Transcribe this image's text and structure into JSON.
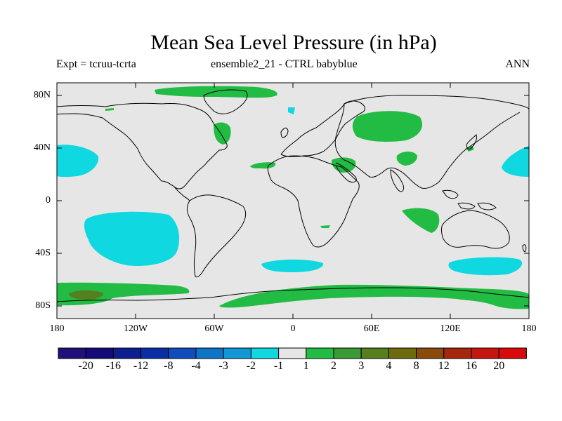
{
  "title": "Mean Sea Level Pressure (in hPa)",
  "subtitle_left": "Expt = tcruu-tcrta",
  "subtitle_center": "ensemble2_21 - CTRL babyblue",
  "subtitle_right": "ANN",
  "lat_labels": [
    "80N",
    "40N",
    "0",
    "40S",
    "80S"
  ],
  "lon_labels": [
    "180",
    "120W",
    "60W",
    "0",
    "60E",
    "120E",
    "180"
  ],
  "colorbar": {
    "labels": [
      "-20",
      "-16",
      "-12",
      "-8",
      "-4",
      "-3",
      "-2",
      "-1",
      "1",
      "2",
      "3",
      "4",
      "8",
      "12",
      "16",
      "20"
    ],
    "colors": [
      "#20107a",
      "#130c78",
      "#0e1e8f",
      "#0a2ea4",
      "#104dba",
      "#0d75c5",
      "#1197d6",
      "#10d8e0",
      "#e6e6e6",
      "#22bb44",
      "#3a9a33",
      "#56801e",
      "#6e6a0e",
      "#8a4a0c",
      "#a6280c",
      "#c6150e",
      "#d80a0a"
    ]
  },
  "colors": {
    "background": "#e6e6e6",
    "negative": "#10d8e0",
    "positive": "#22bb44",
    "strong_positive": "#56801e"
  }
}
